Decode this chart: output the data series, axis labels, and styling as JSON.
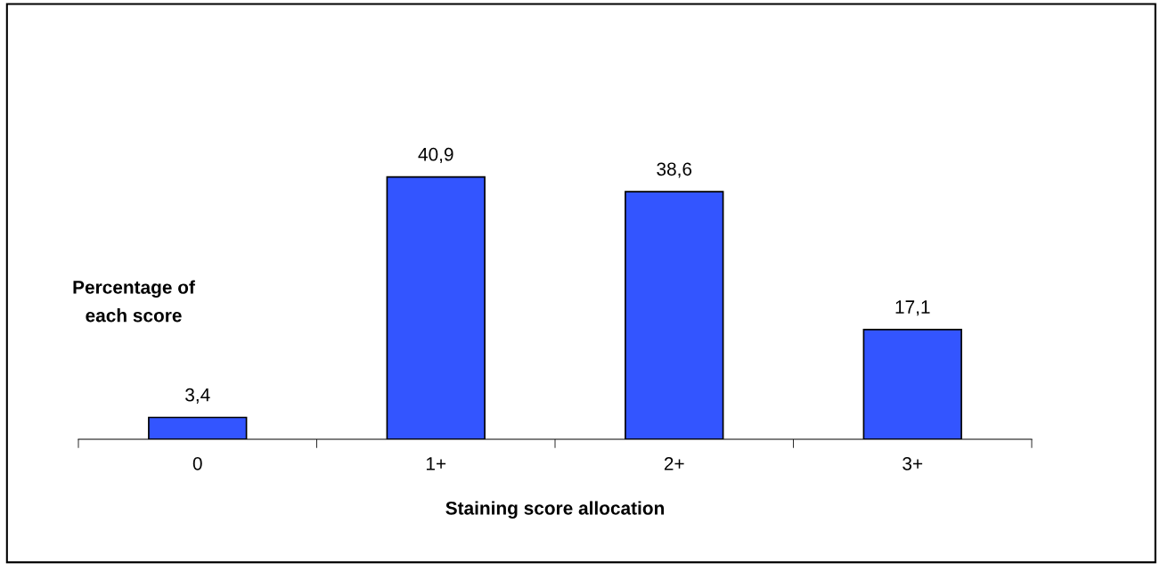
{
  "chart_data": {
    "type": "bar",
    "categories": [
      "0",
      "1+",
      "2+",
      "3+"
    ],
    "values": [
      3.4,
      40.9,
      38.6,
      17.1
    ],
    "value_labels": [
      "3,4",
      "40,9",
      "38,6",
      "17,1"
    ],
    "color": "#3355ff",
    "ylabel": "Percentage of\neach score",
    "xlabel": "Staining score allocation",
    "grid": false,
    "legend": false
  }
}
